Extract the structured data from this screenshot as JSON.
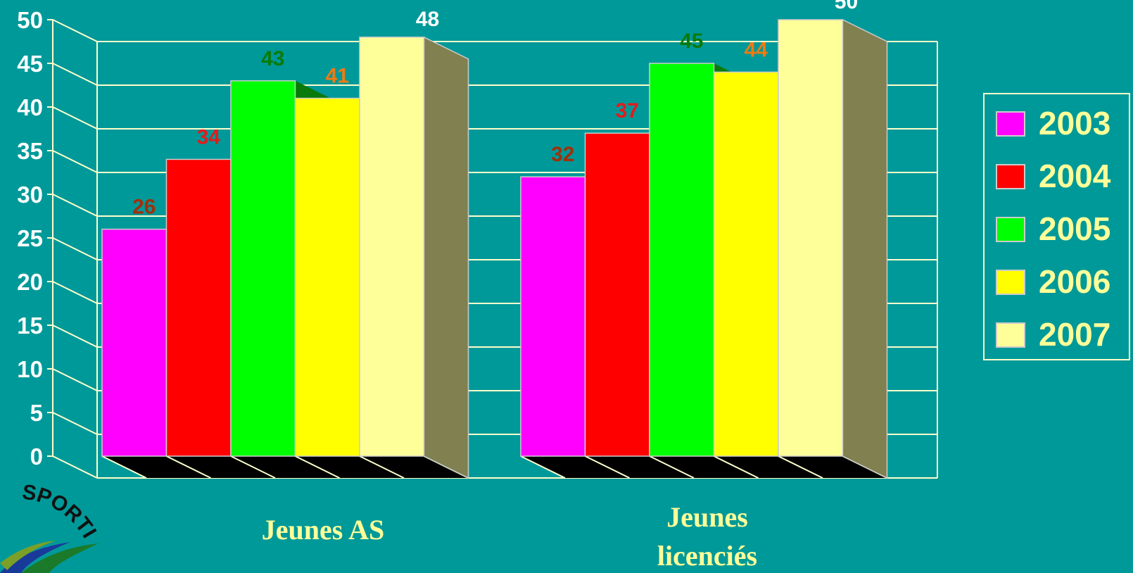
{
  "chart_data": {
    "type": "bar",
    "categories": [
      "Jeunes AS",
      "Jeunes licenciés"
    ],
    "category_lines": [
      [
        "Jeunes AS"
      ],
      [
        "Jeunes",
        "licenciés"
      ]
    ],
    "series": [
      {
        "name": "2003",
        "values": [
          26,
          32
        ],
        "color": "#ff00ff",
        "label_color": "#a0300a"
      },
      {
        "name": "2004",
        "values": [
          34,
          37
        ],
        "color": "#ff0000",
        "label_color": "#e31b1b"
      },
      {
        "name": "2005",
        "values": [
          43,
          45
        ],
        "color": "#00ff00",
        "label_color": "#0a7a0a"
      },
      {
        "name": "2006",
        "values": [
          41,
          44
        ],
        "color": "#ffff00",
        "label_color": "#f07a10"
      },
      {
        "name": "2007",
        "values": [
          48,
          50
        ],
        "color": "#ffff99",
        "label_color": "#ffffff"
      }
    ],
    "y_ticks": [
      "0",
      "5",
      "10",
      "15",
      "20",
      "25",
      "30",
      "35",
      "40",
      "45",
      "50"
    ],
    "ylim": [
      0,
      50
    ],
    "grid": true,
    "legend": "right",
    "projection": "3d",
    "colors": {
      "background": "#009999",
      "axis_lines": "#ffffcc",
      "floor": "#000000",
      "side_wall": "#808050",
      "top_face": "#0a7a0a"
    }
  },
  "logo": {
    "text": "SPORTI"
  }
}
